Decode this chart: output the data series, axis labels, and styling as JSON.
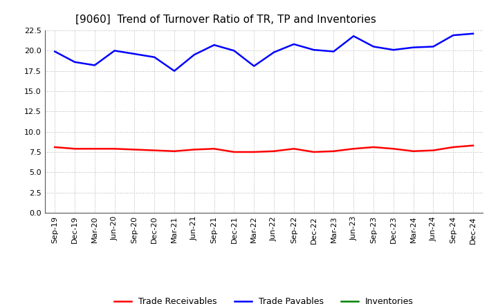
{
  "title": "[9060]  Trend of Turnover Ratio of TR, TP and Inventories",
  "x_labels": [
    "Sep-19",
    "Dec-19",
    "Mar-20",
    "Jun-20",
    "Sep-20",
    "Dec-20",
    "Mar-21",
    "Jun-21",
    "Sep-21",
    "Dec-21",
    "Mar-22",
    "Jun-22",
    "Sep-22",
    "Dec-22",
    "Mar-23",
    "Jun-23",
    "Sep-23",
    "Dec-23",
    "Mar-24",
    "Jun-24",
    "Sep-24",
    "Dec-24"
  ],
  "trade_receivables": [
    8.1,
    7.9,
    7.9,
    7.9,
    7.8,
    7.7,
    7.6,
    7.8,
    7.9,
    7.5,
    7.5,
    7.6,
    7.9,
    7.5,
    7.6,
    7.9,
    8.1,
    7.9,
    7.6,
    7.7,
    8.1,
    8.3
  ],
  "trade_payables": [
    19.9,
    18.6,
    18.2,
    20.0,
    19.6,
    19.2,
    17.5,
    19.5,
    20.7,
    20.0,
    18.1,
    19.8,
    20.8,
    20.1,
    19.9,
    21.8,
    20.5,
    20.1,
    20.4,
    20.5,
    21.9,
    22.1
  ],
  "inventories": [
    null,
    null,
    null,
    null,
    null,
    null,
    null,
    null,
    null,
    null,
    null,
    null,
    null,
    null,
    null,
    null,
    null,
    null,
    null,
    null,
    null,
    null
  ],
  "ylim": [
    0.0,
    22.5
  ],
  "yticks": [
    0.0,
    2.5,
    5.0,
    7.5,
    10.0,
    12.5,
    15.0,
    17.5,
    20.0,
    22.5
  ],
  "tr_color": "#ff0000",
  "tp_color": "#0000ff",
  "inv_color": "#008000",
  "background_color": "#ffffff",
  "grid_color": "#b0b0b0",
  "title_fontsize": 11,
  "legend_fontsize": 9,
  "tick_fontsize": 8
}
